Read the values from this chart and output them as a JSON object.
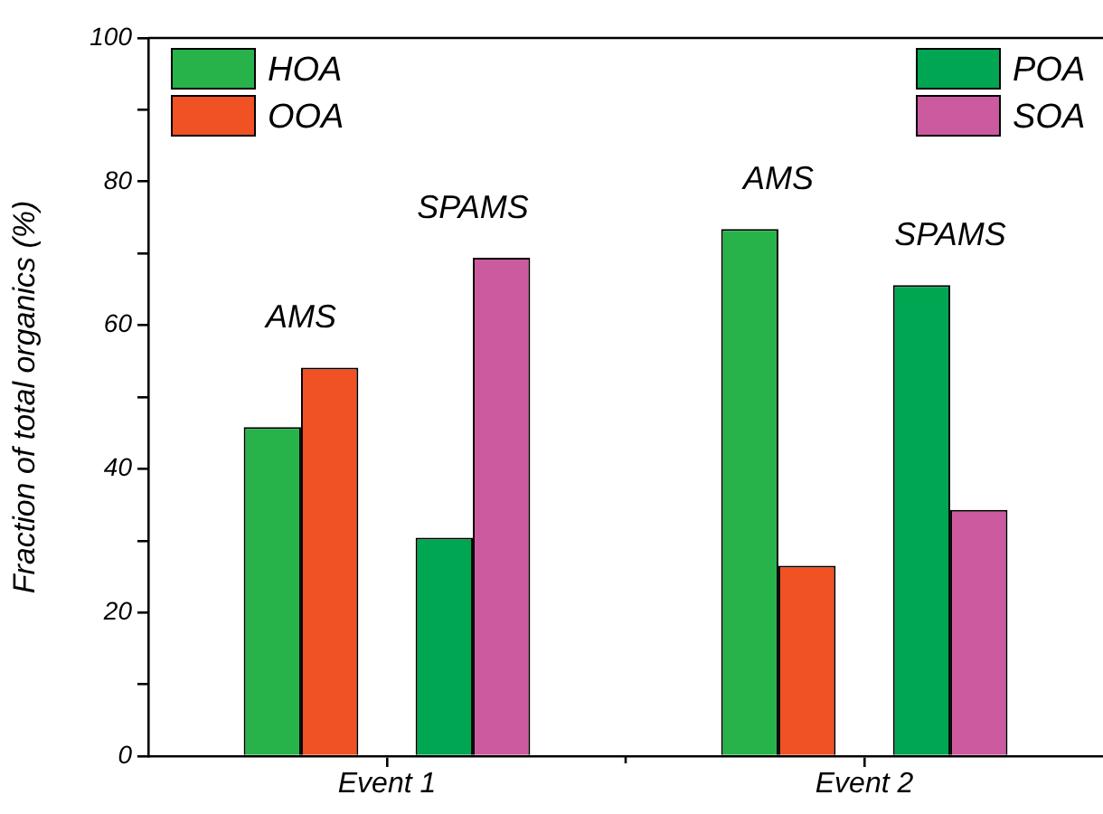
{
  "chart_data": {
    "type": "bar",
    "ylabel": "Fraction of total organics (%)",
    "categories": [
      "Event 1",
      "Event 2"
    ],
    "series": [
      {
        "name": "HOA",
        "color": "#27b24a",
        "values": [
          45.8,
          73.4
        ]
      },
      {
        "name": "OOA",
        "color": "#f05223",
        "values": [
          54.1,
          26.5
        ]
      },
      {
        "name": "POA",
        "color": "#00a651",
        "values": [
          30.4,
          65.6
        ]
      },
      {
        "name": "SOA",
        "color": "#cb5a9f",
        "values": [
          69.4,
          34.3
        ]
      }
    ],
    "ylim": [
      0,
      100
    ],
    "yticks": [
      0,
      {
        "value": 10,
        "label": null
      },
      20,
      {
        "value": 30,
        "label": null
      },
      40,
      {
        "value": 50,
        "label": null
      },
      60,
      {
        "value": 70,
        "label": null
      },
      80,
      {
        "value": 90,
        "label": null
      },
      100
    ],
    "annotations": [
      "AMS",
      "SPAMS",
      "AMS",
      "SPAMS"
    ],
    "legend": "top",
    "grid": false
  }
}
